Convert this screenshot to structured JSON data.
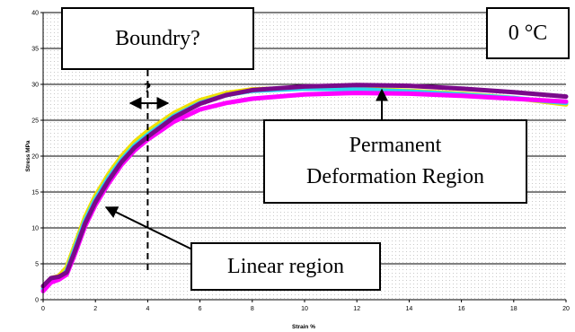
{
  "chart_data": {
    "type": "line",
    "title": "",
    "xlabel": "Strain %",
    "ylabel": "Stress MPa",
    "xlim": [
      0,
      20
    ],
    "ylim": [
      0,
      40
    ],
    "x_ticks": [
      0,
      2,
      4,
      6,
      8,
      10,
      12,
      14,
      16,
      18,
      20
    ],
    "y_ticks": [
      0,
      5,
      10,
      15,
      20,
      25,
      30,
      35,
      40
    ],
    "grid": true,
    "series": [
      {
        "color": "#f0e000",
        "x": [
          0,
          0.3,
          0.6,
          0.9,
          1.2,
          1.6,
          2,
          2.5,
          3,
          3.5,
          4,
          5,
          6,
          7,
          8,
          10,
          12,
          14,
          16,
          18,
          20
        ],
        "y": [
          1.8,
          3.0,
          3.3,
          4.5,
          7.5,
          11.5,
          14.5,
          17.5,
          20.0,
          22.0,
          23.5,
          26.0,
          27.8,
          28.8,
          29.3,
          29.5,
          29.4,
          29.1,
          28.7,
          28.1,
          27.2
        ]
      },
      {
        "color": "#2ed5ee",
        "x": [
          0,
          0.3,
          0.6,
          0.9,
          1.2,
          1.6,
          2,
          2.5,
          3,
          3.5,
          4,
          5,
          6,
          7,
          8,
          10,
          12,
          14,
          16,
          18,
          20
        ],
        "y": [
          1.5,
          2.6,
          2.9,
          4.0,
          7.0,
          11.0,
          14.0,
          17.0,
          19.5,
          21.5,
          23.0,
          25.6,
          27.4,
          28.5,
          29.1,
          29.4,
          29.3,
          29.0,
          28.6,
          28.1,
          27.4
        ]
      },
      {
        "color": "#ff00ff",
        "x": [
          0,
          0.3,
          0.6,
          0.9,
          1.2,
          1.6,
          2,
          2.5,
          3,
          3.5,
          4,
          5,
          6,
          7,
          8,
          10,
          12,
          14,
          16,
          18,
          20
        ],
        "y": [
          1.2,
          2.4,
          2.8,
          3.5,
          6.2,
          10.2,
          13.2,
          16.2,
          18.8,
          20.8,
          22.3,
          24.8,
          26.5,
          27.4,
          28.0,
          28.6,
          28.8,
          28.7,
          28.4,
          28.0,
          27.6
        ]
      },
      {
        "color": "#7a0a8a",
        "x": [
          0,
          0.3,
          0.6,
          0.9,
          1.2,
          1.6,
          2,
          2.5,
          3,
          3.5,
          4,
          5,
          6,
          7,
          8,
          10,
          12,
          14,
          16,
          18,
          20
        ],
        "y": [
          1.9,
          3.0,
          3.2,
          3.8,
          6.6,
          10.6,
          13.6,
          16.6,
          19.2,
          21.2,
          22.7,
          25.4,
          27.3,
          28.5,
          29.2,
          29.7,
          29.9,
          29.8,
          29.4,
          28.9,
          28.3
        ]
      }
    ],
    "annotations": {
      "boundary": "Boundry?",
      "boundary_mark": "?",
      "boundary_strain": 4,
      "temperature": "0 °C",
      "permanent_line1": "Permanent",
      "permanent_line2": "Deformation Region",
      "linear": "Linear region"
    }
  }
}
